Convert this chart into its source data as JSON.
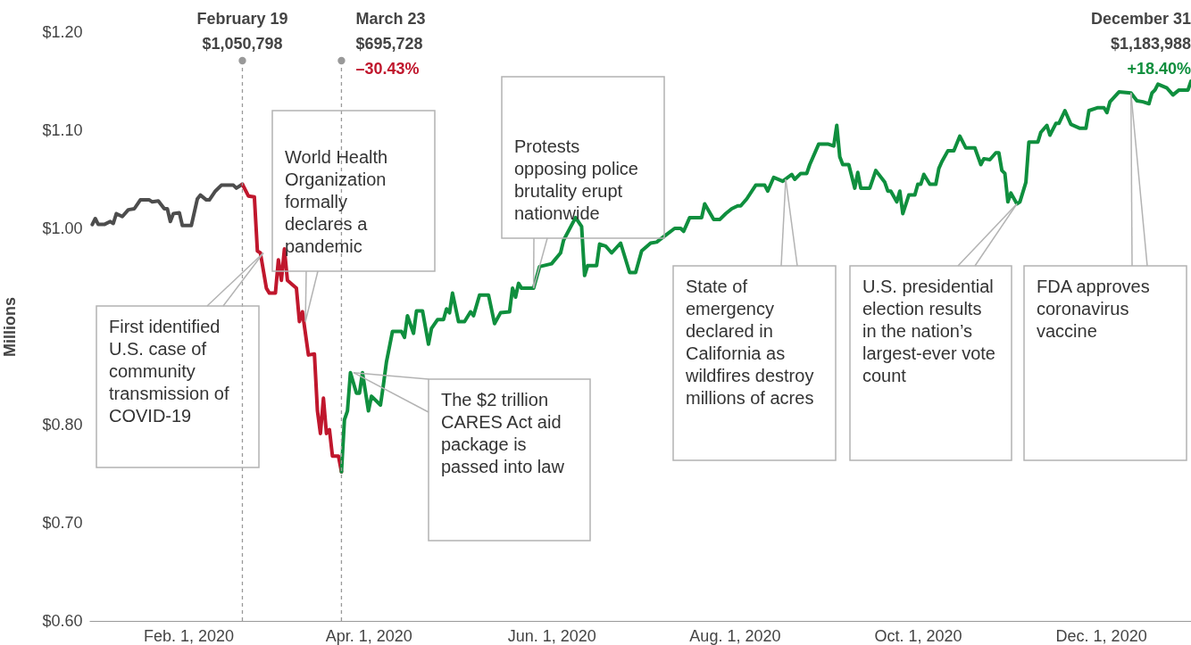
{
  "chart_data": {
    "type": "line",
    "ylabel": "Millions",
    "xlim": [
      "2019-12-30",
      "2020-12-31"
    ],
    "ylim": [
      0.6,
      1.2
    ],
    "xticks": [
      {
        "value": "2020-02-01",
        "label": "Feb. 1, 2020"
      },
      {
        "value": "2020-04-01",
        "label": "Apr. 1, 2020"
      },
      {
        "value": "2020-06-01",
        "label": "Jun. 1, 2020"
      },
      {
        "value": "2020-08-01",
        "label": "Aug. 1, 2020"
      },
      {
        "value": "2020-10-01",
        "label": "Oct. 1, 2020"
      },
      {
        "value": "2020-12-01",
        "label": "Dec. 1, 2020"
      }
    ],
    "yticks": [
      {
        "value": 0.6,
        "label": "$0.60"
      },
      {
        "value": 0.7,
        "label": "$0.70"
      },
      {
        "value": 0.8,
        "label": "$0.80"
      },
      {
        "value": 1.0,
        "label": "$1.00"
      },
      {
        "value": 1.1,
        "label": "$1.10"
      },
      {
        "value": 1.2,
        "label": "$1.20"
      }
    ],
    "grid": false,
    "legend": false,
    "marker": "none",
    "line_style": "solid",
    "series": [
      {
        "color": "#4d4d4d",
        "x": [
          "2019-12-31",
          "2020-01-01",
          "2020-01-02",
          "2020-01-04",
          "2020-01-06",
          "2020-01-07",
          "2020-01-08",
          "2020-01-10",
          "2020-01-12",
          "2020-01-14",
          "2020-01-16",
          "2020-01-19",
          "2020-01-20",
          "2020-01-22",
          "2020-01-24",
          "2020-01-25",
          "2020-01-26",
          "2020-01-27",
          "2020-01-29",
          "2020-01-30",
          "2020-02-02",
          "2020-02-04",
          "2020-02-05",
          "2020-02-07",
          "2020-02-08",
          "2020-02-10",
          "2020-02-12",
          "2020-02-16",
          "2020-02-17",
          "2020-02-19"
        ],
        "values": [
          1.004,
          1.01,
          1.004,
          1.004,
          1.007,
          1.005,
          1.015,
          1.012,
          1.019,
          1.02,
          1.029,
          1.029,
          1.027,
          1.028,
          1.02,
          1.02,
          1.007,
          1.015,
          1.016,
          1.003,
          1.003,
          1.03,
          1.034,
          1.029,
          1.029,
          1.038,
          1.044,
          1.044,
          1.041,
          1.045
        ]
      },
      {
        "color": "#c0172d",
        "x": [
          "2020-02-19",
          "2020-02-21",
          "2020-02-23",
          "2020-02-24",
          "2020-02-25",
          "2020-02-27",
          "2020-02-28",
          "2020-03-01",
          "2020-03-02",
          "2020-03-03",
          "2020-03-04",
          "2020-03-05",
          "2020-03-08",
          "2020-03-09",
          "2020-03-10",
          "2020-03-12",
          "2020-03-14",
          "2020-03-15",
          "2020-03-16",
          "2020-03-17",
          "2020-03-18",
          "2020-03-19",
          "2020-03-20",
          "2020-03-22",
          "2020-03-23"
        ],
        "values": [
          1.045,
          1.033,
          1.032,
          0.977,
          0.975,
          0.939,
          0.934,
          0.934,
          0.968,
          0.947,
          0.979,
          0.947,
          0.939,
          0.905,
          0.915,
          0.871,
          0.872,
          0.814,
          0.791,
          0.827,
          0.791,
          0.795,
          0.768,
          0.768,
          0.752
        ]
      },
      {
        "color": "#0f8f3e",
        "x": [
          "2020-03-23",
          "2020-03-24",
          "2020-03-25",
          "2020-03-26",
          "2020-03-28",
          "2020-03-29",
          "2020-03-30",
          "2020-04-01",
          "2020-04-02",
          "2020-04-05",
          "2020-04-06",
          "2020-04-07",
          "2020-04-09",
          "2020-04-12",
          "2020-04-13",
          "2020-04-14",
          "2020-04-16",
          "2020-04-17",
          "2020-04-19",
          "2020-04-21",
          "2020-04-22",
          "2020-04-24",
          "2020-04-26",
          "2020-04-27",
          "2020-04-28",
          "2020-04-29",
          "2020-05-01",
          "2020-05-03",
          "2020-05-05",
          "2020-05-06",
          "2020-05-08",
          "2020-05-11",
          "2020-05-13",
          "2020-05-15",
          "2020-05-18",
          "2020-05-19",
          "2020-05-20",
          "2020-05-21",
          "2020-05-22",
          "2020-05-26",
          "2020-05-28",
          "2020-06-01",
          "2020-06-04",
          "2020-06-05",
          "2020-06-09",
          "2020-06-11",
          "2020-06-12",
          "2020-06-13",
          "2020-06-16",
          "2020-06-17",
          "2020-06-19",
          "2020-06-21",
          "2020-06-24",
          "2020-06-25",
          "2020-06-27",
          "2020-06-29",
          "2020-07-01",
          "2020-07-04",
          "2020-07-06",
          "2020-07-09",
          "2020-07-12",
          "2020-07-14",
          "2020-07-15",
          "2020-07-17",
          "2020-07-21",
          "2020-07-22",
          "2020-07-25",
          "2020-07-27",
          "2020-07-29",
          "2020-07-31",
          "2020-08-02",
          "2020-08-03",
          "2020-08-05",
          "2020-08-08",
          "2020-08-11",
          "2020-08-12",
          "2020-08-14",
          "2020-08-17",
          "2020-08-20",
          "2020-08-21",
          "2020-08-23",
          "2020-08-25",
          "2020-08-26",
          "2020-08-29",
          "2020-09-01",
          "2020-09-03",
          "2020-09-04",
          "2020-09-05",
          "2020-09-06",
          "2020-09-08",
          "2020-09-10",
          "2020-09-11",
          "2020-09-12",
          "2020-09-15",
          "2020-09-17",
          "2020-09-20",
          "2020-09-21",
          "2020-09-22",
          "2020-09-24",
          "2020-09-25",
          "2020-09-26",
          "2020-09-28",
          "2020-09-30",
          "2020-10-01",
          "2020-10-02",
          "2020-10-03",
          "2020-10-05",
          "2020-10-07",
          "2020-10-08",
          "2020-10-09",
          "2020-10-11",
          "2020-10-13",
          "2020-10-15",
          "2020-10-17",
          "2020-10-20",
          "2020-10-22",
          "2020-10-23",
          "2020-10-25",
          "2020-10-27",
          "2020-10-28",
          "2020-10-29",
          "2020-10-30",
          "2020-10-31",
          "2020-11-01",
          "2020-11-03",
          "2020-11-04",
          "2020-11-06",
          "2020-11-07",
          "2020-11-10",
          "2020-11-11",
          "2020-11-13",
          "2020-11-14",
          "2020-11-16",
          "2020-11-17",
          "2020-11-19",
          "2020-11-21",
          "2020-11-24",
          "2020-11-26",
          "2020-11-27",
          "2020-11-30",
          "2020-12-02",
          "2020-12-03",
          "2020-12-04",
          "2020-12-07",
          "2020-12-11",
          "2020-12-13",
          "2020-12-15",
          "2020-12-17",
          "2020-12-18",
          "2020-12-19",
          "2020-12-20",
          "2020-12-23",
          "2020-12-25",
          "2020-12-27",
          "2020-12-30",
          "2020-12-31"
        ],
        "values": [
          0.752,
          0.805,
          0.814,
          0.853,
          0.832,
          0.832,
          0.853,
          0.814,
          0.829,
          0.82,
          0.841,
          0.864,
          0.895,
          0.895,
          0.889,
          0.911,
          0.893,
          0.916,
          0.916,
          0.882,
          0.898,
          0.907,
          0.907,
          0.918,
          0.914,
          0.934,
          0.905,
          0.905,
          0.915,
          0.911,
          0.932,
          0.932,
          0.903,
          0.914,
          0.915,
          0.939,
          0.93,
          0.944,
          0.939,
          0.939,
          0.961,
          0.964,
          0.975,
          0.988,
          1.011,
          1.002,
          0.952,
          0.962,
          0.962,
          0.984,
          0.982,
          0.975,
          0.985,
          0.975,
          0.955,
          0.955,
          0.977,
          0.985,
          0.986,
          0.993,
          1.0,
          1.0,
          0.997,
          1.011,
          1.011,
          1.025,
          1.009,
          1.009,
          1.015,
          1.02,
          1.023,
          1.023,
          1.03,
          1.044,
          1.044,
          1.038,
          1.052,
          1.048,
          1.055,
          1.05,
          1.056,
          1.056,
          1.065,
          1.086,
          1.086,
          1.084,
          1.105,
          1.073,
          1.065,
          1.065,
          1.041,
          1.057,
          1.041,
          1.041,
          1.059,
          1.047,
          1.038,
          1.038,
          1.027,
          1.038,
          1.015,
          1.034,
          1.034,
          1.045,
          1.045,
          1.055,
          1.045,
          1.045,
          1.061,
          1.068,
          1.079,
          1.079,
          1.094,
          1.082,
          1.082,
          1.065,
          1.071,
          1.07,
          1.077,
          1.077,
          1.059,
          1.056,
          1.027,
          1.036,
          1.025,
          1.027,
          1.047,
          1.088,
          1.088,
          1.098,
          1.105,
          1.095,
          1.107,
          1.107,
          1.12,
          1.106,
          1.102,
          1.102,
          1.12,
          1.123,
          1.123,
          1.118,
          1.129,
          1.139,
          1.138,
          1.13,
          1.129,
          1.127,
          1.138,
          1.141,
          1.147,
          1.143,
          1.136,
          1.141,
          1.141,
          1.15
        ]
      }
    ],
    "ref_lines": [
      {
        "axis": "x",
        "value": "2020-02-19",
        "label": "February 19\n$1,050,798",
        "line_style": "dashed",
        "color": "#999999"
      },
      {
        "axis": "x",
        "value": "2020-03-23",
        "label": "March 23\n$695,728\n–30.43%",
        "line_style": "dashed",
        "color": "#999999"
      }
    ],
    "annotations": [
      "December 31",
      "$1,183,988",
      "+18.40%",
      {
        "text": "First identified U.S. case of community transmission of COVID-19",
        "x": "2020-02-26",
        "y": 0.975
      },
      {
        "text": "World Health Organization formally declares a pandemic",
        "x": "2020-03-11",
        "y": 0.905
      },
      {
        "text": "The $2 trillion CARES Act aid package is passed into law",
        "x": "2020-03-27",
        "y": 0.853
      },
      {
        "text": "Protests opposing police brutality erupt nationwide",
        "x": "2020-05-26",
        "y": 0.939
      },
      {
        "text": "State of emergency declared in California as wildfires destroy millions of acres",
        "x": "2020-08-18",
        "y": 1.05
      },
      {
        "text": "U.S. presidential election results in the nation’s largest-ever vote count",
        "x": "2020-11-03",
        "y": 1.025
      },
      {
        "text": "FDA approves coronavirus vaccine",
        "x": "2020-12-11",
        "y": 1.138
      }
    ]
  }
}
